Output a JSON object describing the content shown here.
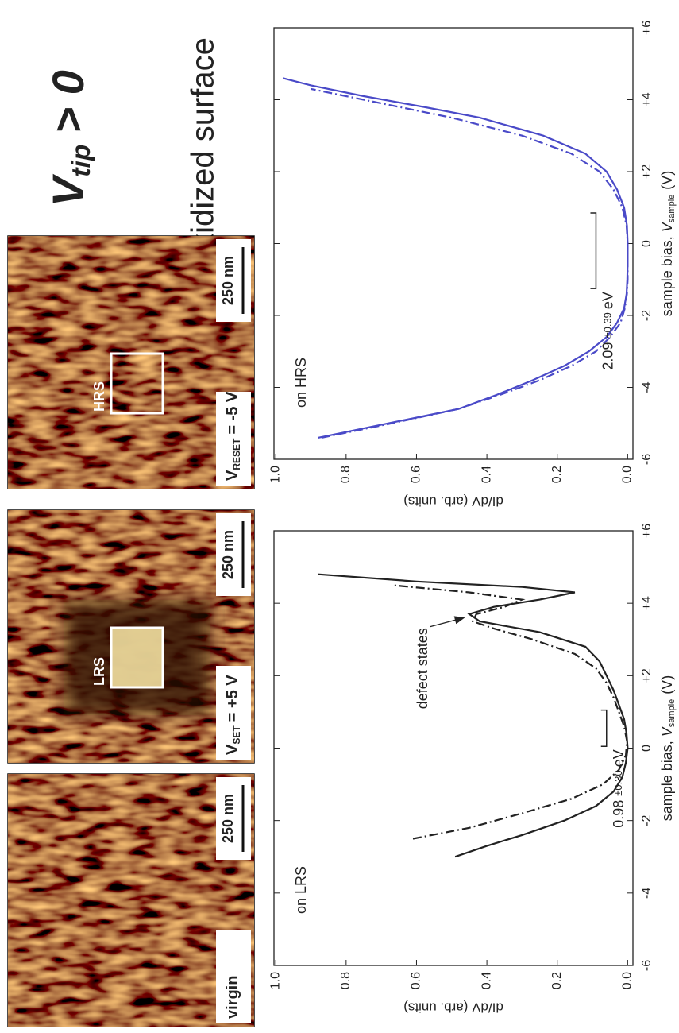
{
  "title": {
    "main": "V",
    "sub": "tip",
    "rest": "> 0"
  },
  "subtitle": "Oxidized surface",
  "images": [
    {
      "label": {
        "main": "virgin"
      },
      "scale_bar": "250 nm"
    },
    {
      "label": {
        "main": "V",
        "sub": "SET",
        "rest": "= +5 V"
      },
      "box_label": "LRS",
      "scale_bar": "250 nm"
    },
    {
      "label": {
        "main": "V",
        "sub": "RESET",
        "rest": "= -5 V"
      },
      "box_label": "HRS",
      "scale_bar": "250 nm"
    }
  ],
  "chart_data": [
    {
      "type": "line",
      "annotation": "on LRS",
      "callout": "defect states",
      "gap": {
        "start": 0.05,
        "end": 1.05,
        "level": 0.06,
        "label": "0.98",
        "error": "±0.30",
        "unit": "eV"
      },
      "xlabel": {
        "text": "sample bias,",
        "var": "V",
        "sub": "sample",
        "unit": "(V)"
      },
      "ylabel": "dI/dV (arb. units)",
      "xlim": [
        -6,
        6
      ],
      "ylim": [
        -0.015,
        1.005
      ],
      "xticks": [
        -6,
        -4,
        -2,
        0,
        {
          "value": 2,
          "label": "+2"
        },
        {
          "value": 4,
          "label": "+4"
        },
        {
          "value": 6,
          "label": "+6"
        }
      ],
      "yticks": [
        {
          "value": 0,
          "label": "0.0"
        },
        {
          "value": 0.2,
          "label": "0.2"
        },
        {
          "value": 0.4,
          "label": "0.4"
        },
        {
          "value": 0.6,
          "label": "0.6"
        },
        {
          "value": 0.8,
          "label": "0.8"
        },
        {
          "value": 1,
          "label": "1.0"
        }
      ],
      "series": [
        {
          "color": "#222222",
          "style": "solid",
          "x": [
            -3,
            -2.7,
            -2.4,
            -2,
            -1.6,
            -1.2,
            -0.8,
            -0.4,
            0,
            0.4,
            0.8,
            1.2,
            1.6,
            2,
            2.4,
            2.8,
            3.2,
            3.5,
            3.7,
            3.9,
            4.1,
            4.3,
            4.45,
            4.6,
            4.8
          ],
          "values": [
            0.49,
            0.4,
            0.3,
            0.18,
            0.09,
            0.04,
            0.015,
            0.005,
            0,
            0.003,
            0.01,
            0.025,
            0.04,
            0.06,
            0.08,
            0.12,
            0.25,
            0.42,
            0.45,
            0.38,
            0.25,
            0.15,
            0.3,
            0.6,
            0.88
          ]
        },
        {
          "color": "#222222",
          "style": "dashdot",
          "x": [
            -2.5,
            -2.2,
            -1.8,
            -1.4,
            -1,
            -0.6,
            -0.2,
            0.2,
            0.6,
            1,
            1.4,
            1.8,
            2.2,
            2.6,
            3,
            3.3,
            3.5,
            3.7,
            3.9,
            4.1,
            4.3,
            4.5
          ],
          "values": [
            0.61,
            0.45,
            0.3,
            0.16,
            0.07,
            0.025,
            0.005,
            0.002,
            0.01,
            0.025,
            0.04,
            0.06,
            0.09,
            0.15,
            0.27,
            0.38,
            0.44,
            0.43,
            0.35,
            0.3,
            0.45,
            0.67
          ]
        }
      ]
    },
    {
      "type": "line",
      "annotation": "on HRS",
      "gap": {
        "start": -1.25,
        "end": 0.85,
        "level": 0.09,
        "label": "2.09",
        "error": "±0.39",
        "unit": "eV"
      },
      "xlabel": {
        "text": "sample bias,",
        "var": "V",
        "sub": "sample",
        "unit": "(V)"
      },
      "ylabel": "dI/dV (arb. units)",
      "xlim": [
        -6,
        6
      ],
      "ylim": [
        -0.015,
        1.005
      ],
      "xticks": [
        -6,
        -4,
        -2,
        0,
        {
          "value": 2,
          "label": "+2"
        },
        {
          "value": 4,
          "label": "+4"
        },
        {
          "value": 6,
          "label": "+6"
        }
      ],
      "yticks": [
        {
          "value": 0,
          "label": "0.0"
        },
        {
          "value": 0.2,
          "label": "0.2"
        },
        {
          "value": 0.4,
          "label": "0.4"
        },
        {
          "value": 0.6,
          "label": "0.6"
        },
        {
          "value": 0.8,
          "label": "0.8"
        },
        {
          "value": 1,
          "label": "1.0"
        }
      ],
      "series": [
        {
          "color": "#4a4ac8",
          "style": "solid",
          "x": [
            -5.4,
            -5,
            -4.6,
            -4.2,
            -3.8,
            -3.4,
            -3,
            -2.6,
            -2.2,
            -1.8,
            -1.4,
            -1,
            -0.5,
            0,
            0.5,
            1,
            1.5,
            2,
            2.5,
            3,
            3.5,
            3.8,
            4.1,
            4.4,
            4.6
          ],
          "values": [
            0.88,
            0.68,
            0.48,
            0.37,
            0.27,
            0.18,
            0.11,
            0.06,
            0.03,
            0.01,
            0.003,
            0.001,
            0,
            0,
            0.002,
            0.01,
            0.03,
            0.06,
            0.12,
            0.24,
            0.42,
            0.58,
            0.75,
            0.9,
            0.98
          ]
        },
        {
          "color": "#4a4ac8",
          "style": "dashdot",
          "x": [
            -5.4,
            -5,
            -4.6,
            -4.2,
            -3.8,
            -3.4,
            -3,
            -2.6,
            -2.2,
            -1.8,
            -1.4,
            -1,
            -0.5,
            0,
            0.5,
            1,
            1.5,
            2,
            2.5,
            3,
            3.5,
            3.8,
            4.1,
            4.3
          ],
          "values": [
            0.87,
            0.67,
            0.48,
            0.36,
            0.25,
            0.16,
            0.09,
            0.05,
            0.02,
            0.008,
            0.002,
            0,
            0,
            0,
            0.003,
            0.015,
            0.04,
            0.08,
            0.16,
            0.3,
            0.5,
            0.65,
            0.8,
            0.9
          ]
        }
      ]
    }
  ]
}
